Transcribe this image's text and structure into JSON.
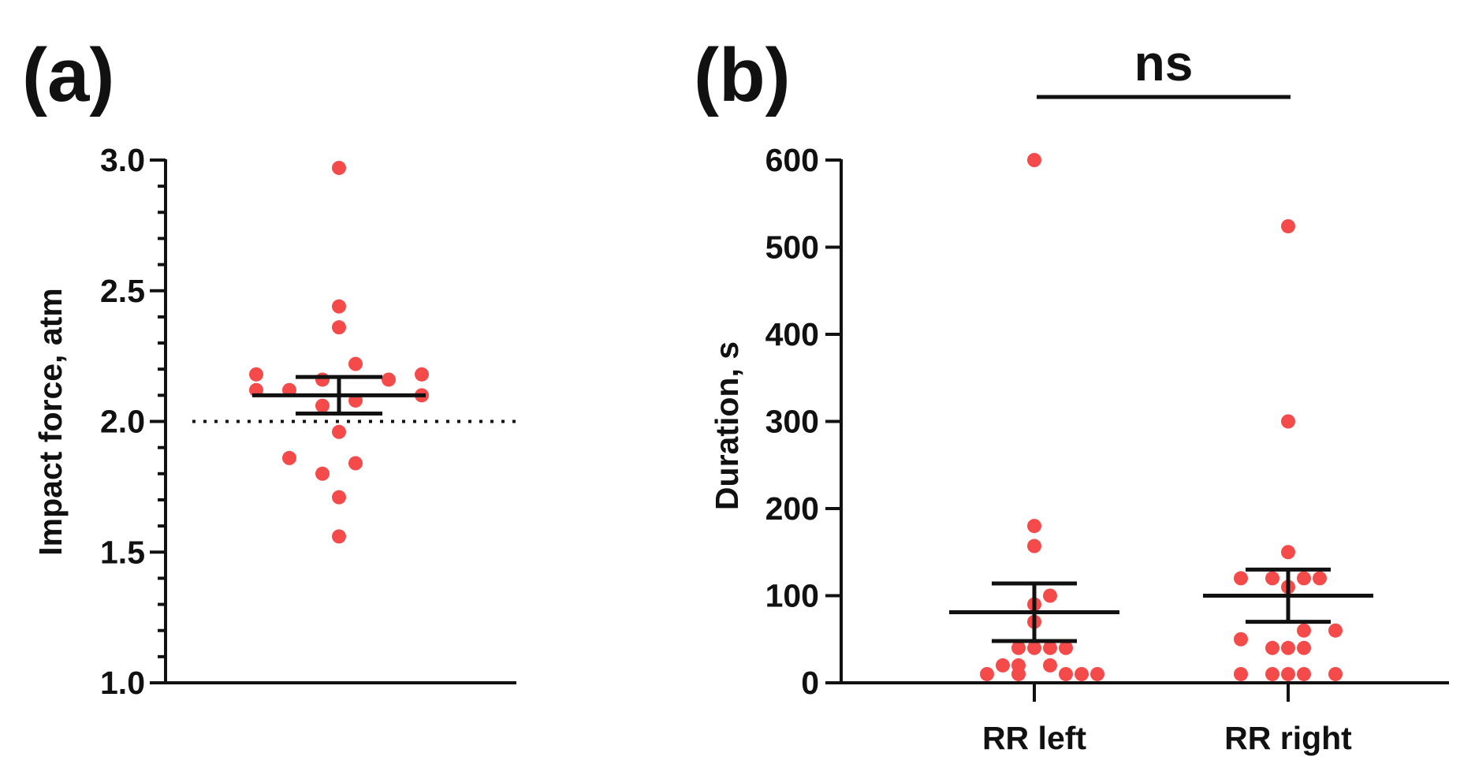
{
  "chart_data": [
    {
      "type": "scatter",
      "panel_label": "(a)",
      "xlabel": "",
      "ylabel": "Impact force, atm",
      "ylim": [
        1.0,
        3.0
      ],
      "yticks": [
        "1.0",
        "1.5",
        "2.0",
        "2.5",
        "3.0"
      ],
      "y_minor_step": 0.1,
      "reference_line": 2.0,
      "point_color": "#f44a4a",
      "series": [
        {
          "name": "Impact force",
          "points": [
            {
              "offset": 0,
              "y": 2.97
            },
            {
              "offset": 0,
              "y": 2.44
            },
            {
              "offset": 0,
              "y": 2.36
            },
            {
              "offset": 1,
              "y": 2.22
            },
            {
              "offset": -5,
              "y": 2.18
            },
            {
              "offset": 5,
              "y": 2.18
            },
            {
              "offset": -1,
              "y": 2.16
            },
            {
              "offset": 3,
              "y": 2.16
            },
            {
              "offset": -5,
              "y": 2.12
            },
            {
              "offset": -3,
              "y": 2.12
            },
            {
              "offset": 5,
              "y": 2.1
            },
            {
              "offset": 1,
              "y": 2.08
            },
            {
              "offset": -1,
              "y": 2.06
            },
            {
              "offset": 0,
              "y": 1.96
            },
            {
              "offset": -3,
              "y": 1.86
            },
            {
              "offset": -1,
              "y": 1.8
            },
            {
              "offset": 1,
              "y": 1.84
            },
            {
              "offset": 0,
              "y": 1.71
            },
            {
              "offset": 0,
              "y": 1.56
            }
          ],
          "mean": 2.1,
          "sem_upper": 2.17,
          "sem_lower": 2.03
        }
      ]
    },
    {
      "type": "scatter",
      "panel_label": "(b)",
      "xlabel": "",
      "ylabel": "Duration, s",
      "ylim": [
        0,
        600
      ],
      "yticks": [
        "0",
        "100",
        "200",
        "300",
        "400",
        "500",
        "600"
      ],
      "categories": [
        "RR left",
        "RR right"
      ],
      "significance": "ns",
      "point_color": "#f44a4a",
      "series": [
        {
          "name": "RR left",
          "points": [
            {
              "offset": 0,
              "y": 600
            },
            {
              "offset": 0,
              "y": 180
            },
            {
              "offset": 0,
              "y": 157
            },
            {
              "offset": 1,
              "y": 100
            },
            {
              "offset": 0,
              "y": 90
            },
            {
              "offset": 0,
              "y": 70
            },
            {
              "offset": -1,
              "y": 40
            },
            {
              "offset": 0,
              "y": 40
            },
            {
              "offset": 1,
              "y": 40
            },
            {
              "offset": 2,
              "y": 40
            },
            {
              "offset": -2,
              "y": 20
            },
            {
              "offset": -1,
              "y": 20
            },
            {
              "offset": 1,
              "y": 20
            },
            {
              "offset": -3,
              "y": 10
            },
            {
              "offset": -1,
              "y": 10
            },
            {
              "offset": 2,
              "y": 10
            },
            {
              "offset": 3,
              "y": 10
            },
            {
              "offset": 4,
              "y": 10
            }
          ],
          "mean": 81,
          "sem_upper": 114,
          "sem_lower": 48
        },
        {
          "name": "RR right",
          "points": [
            {
              "offset": 0,
              "y": 524
            },
            {
              "offset": 0,
              "y": 300
            },
            {
              "offset": 0,
              "y": 150
            },
            {
              "offset": -3,
              "y": 120
            },
            {
              "offset": -1,
              "y": 120
            },
            {
              "offset": 1,
              "y": 120
            },
            {
              "offset": 2,
              "y": 120
            },
            {
              "offset": 0,
              "y": 110
            },
            {
              "offset": 1,
              "y": 60
            },
            {
              "offset": 3,
              "y": 60
            },
            {
              "offset": -3,
              "y": 50
            },
            {
              "offset": -1,
              "y": 40
            },
            {
              "offset": 0,
              "y": 40
            },
            {
              "offset": 1,
              "y": 40
            },
            {
              "offset": -3,
              "y": 10
            },
            {
              "offset": -1,
              "y": 10
            },
            {
              "offset": 0,
              "y": 10
            },
            {
              "offset": 1,
              "y": 10
            },
            {
              "offset": 3,
              "y": 10
            }
          ],
          "mean": 100,
          "sem_upper": 130,
          "sem_lower": 70
        }
      ]
    }
  ]
}
